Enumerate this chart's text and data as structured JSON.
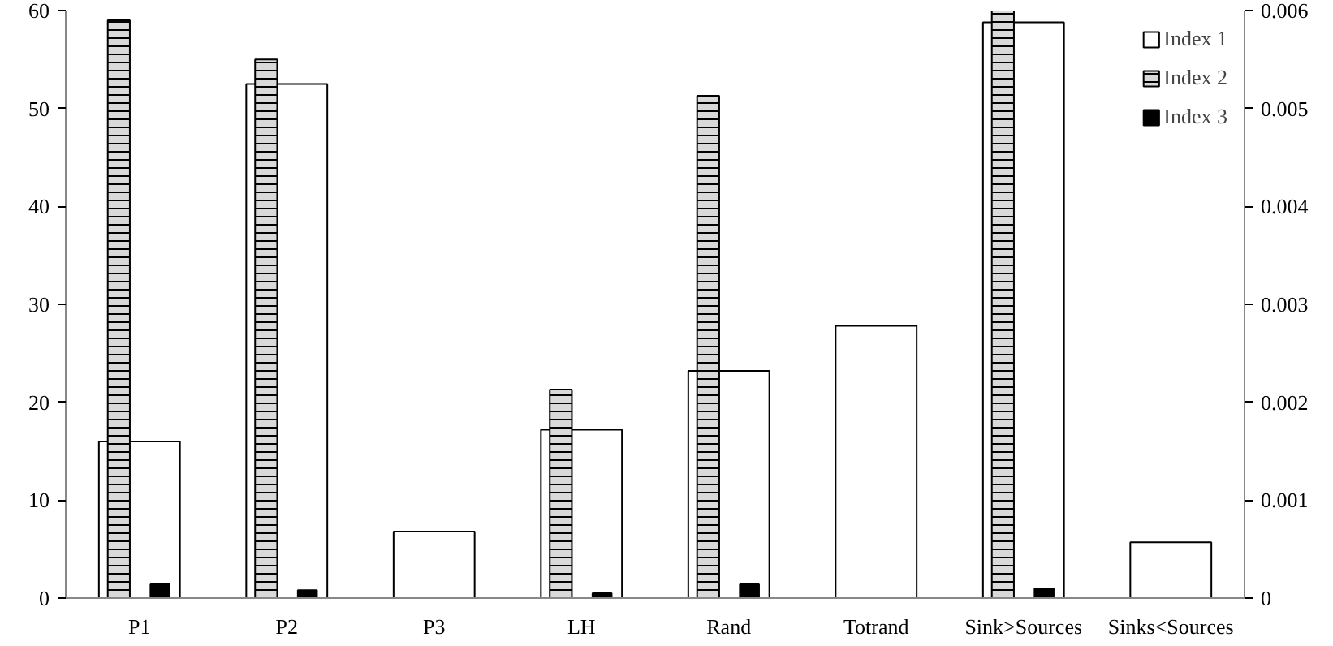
{
  "chart_data": {
    "type": "bar",
    "categories": [
      "P1",
      "P2",
      "P3",
      "LH",
      "Rand",
      "Totrand",
      "Sink>Sources",
      "Sinks<Sources"
    ],
    "series": [
      {
        "name": "Index 1",
        "color": "#ffffff",
        "values": [
          16,
          52.5,
          6.8,
          17.2,
          23.2,
          27.8,
          58.8,
          5.7
        ]
      },
      {
        "name": "Index 2",
        "color": "#d9d9d9",
        "values": [
          59,
          55,
          null,
          21.3,
          51.3,
          null,
          60,
          null
        ]
      },
      {
        "name": "Index 3",
        "color": "#000000",
        "axis": "y2",
        "values": [
          0.00015,
          8e-05,
          null,
          5e-05,
          0.00015,
          null,
          0.0001,
          null
        ]
      }
    ],
    "ylim": [
      0,
      60
    ],
    "yticks": [
      0,
      10,
      20,
      30,
      40,
      50,
      60
    ],
    "y2lim": [
      0,
      0.006
    ],
    "y2ticks": [
      0,
      0.001,
      0.002,
      0.003,
      0.004,
      0.005,
      0.006
    ],
    "grid": false,
    "legend": "top right"
  }
}
